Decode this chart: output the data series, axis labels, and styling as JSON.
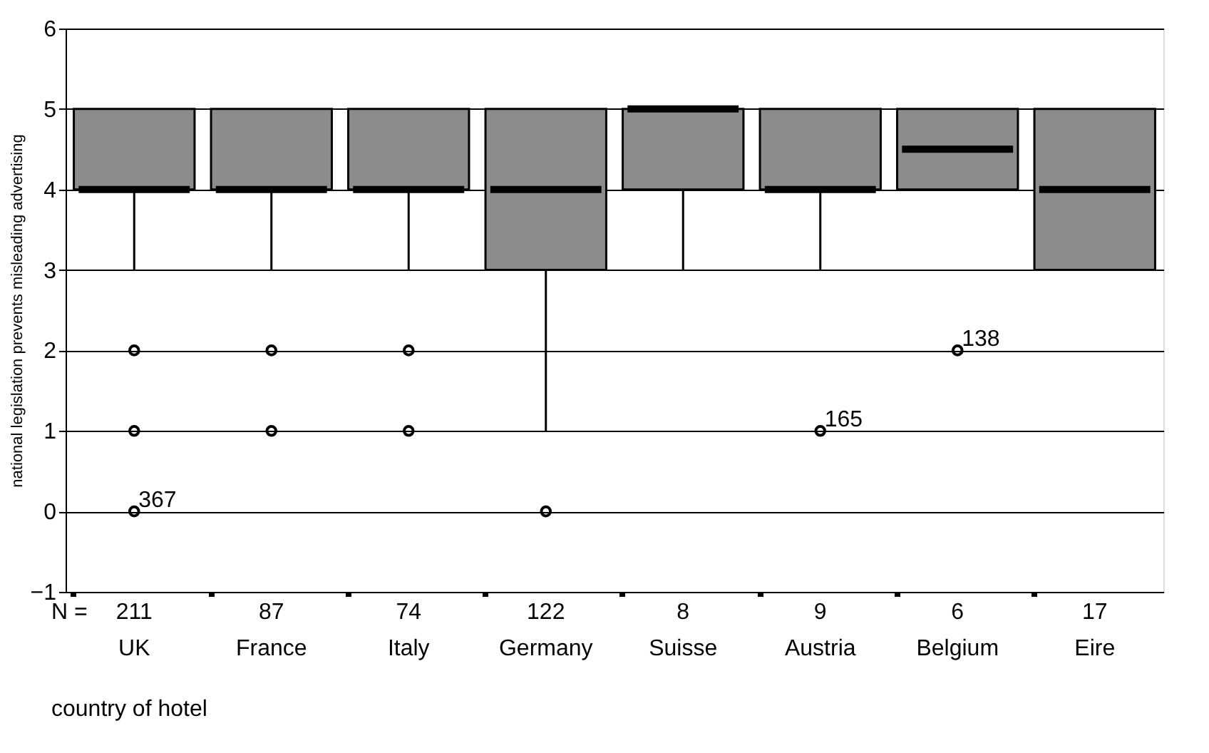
{
  "chart_data": {
    "type": "box",
    "ylabel": "national legislation prevents misleading advertising",
    "xlabel": "country of hotel",
    "categories": [
      "UK",
      "France",
      "Italy",
      "Germany",
      "Suisse",
      "Austria",
      "Belgium",
      "Eire"
    ],
    "ylim": [
      -1,
      6
    ],
    "yticks": [
      -1,
      0,
      1,
      2,
      3,
      4,
      5,
      6
    ],
    "grid": true,
    "marker": "circle",
    "series": [
      {
        "color": "#8c8c8c",
        "boxes": [
          {
            "low": 3,
            "q1": 4,
            "median": 4,
            "q3": 5,
            "high": 5,
            "outliers": [
              2,
              1
            ]
          },
          {
            "low": 3,
            "q1": 4,
            "median": 4,
            "q3": 5,
            "high": 5,
            "outliers": [
              2,
              1
            ]
          },
          {
            "low": 3,
            "q1": 4,
            "median": 4,
            "q3": 5,
            "high": 5,
            "outliers": [
              2,
              1
            ]
          },
          {
            "low": 1,
            "q1": 3,
            "median": 4,
            "q3": 5,
            "high": 5,
            "outliers": [
              0
            ]
          },
          {
            "low": 3,
            "q1": 4,
            "median": 5,
            "q3": 5,
            "high": 5
          },
          {
            "low": 3,
            "q1": 4,
            "median": 4,
            "q3": 5,
            "high": 5
          },
          {
            "low": 4,
            "q1": 4,
            "median": 4.5,
            "q3": 5,
            "high": 5
          },
          {
            "low": 3,
            "q1": 3,
            "median": 4,
            "q3": 5,
            "high": 5
          }
        ]
      },
      {
        "type": "scatter",
        "color": "#000000",
        "x": [
          "UK",
          "Austria",
          "Belgium"
        ],
        "values": [
          0,
          1,
          2
        ]
      }
    ],
    "annotations": [
      "N =",
      "211",
      "87",
      "74",
      "122",
      "8",
      "9",
      "6",
      "17",
      {
        "text": "367",
        "x": "UK",
        "y": 0
      },
      {
        "text": "165",
        "x": "Austria",
        "y": 1
      },
      {
        "text": "138",
        "x": "Belgium",
        "y": 2
      }
    ]
  }
}
